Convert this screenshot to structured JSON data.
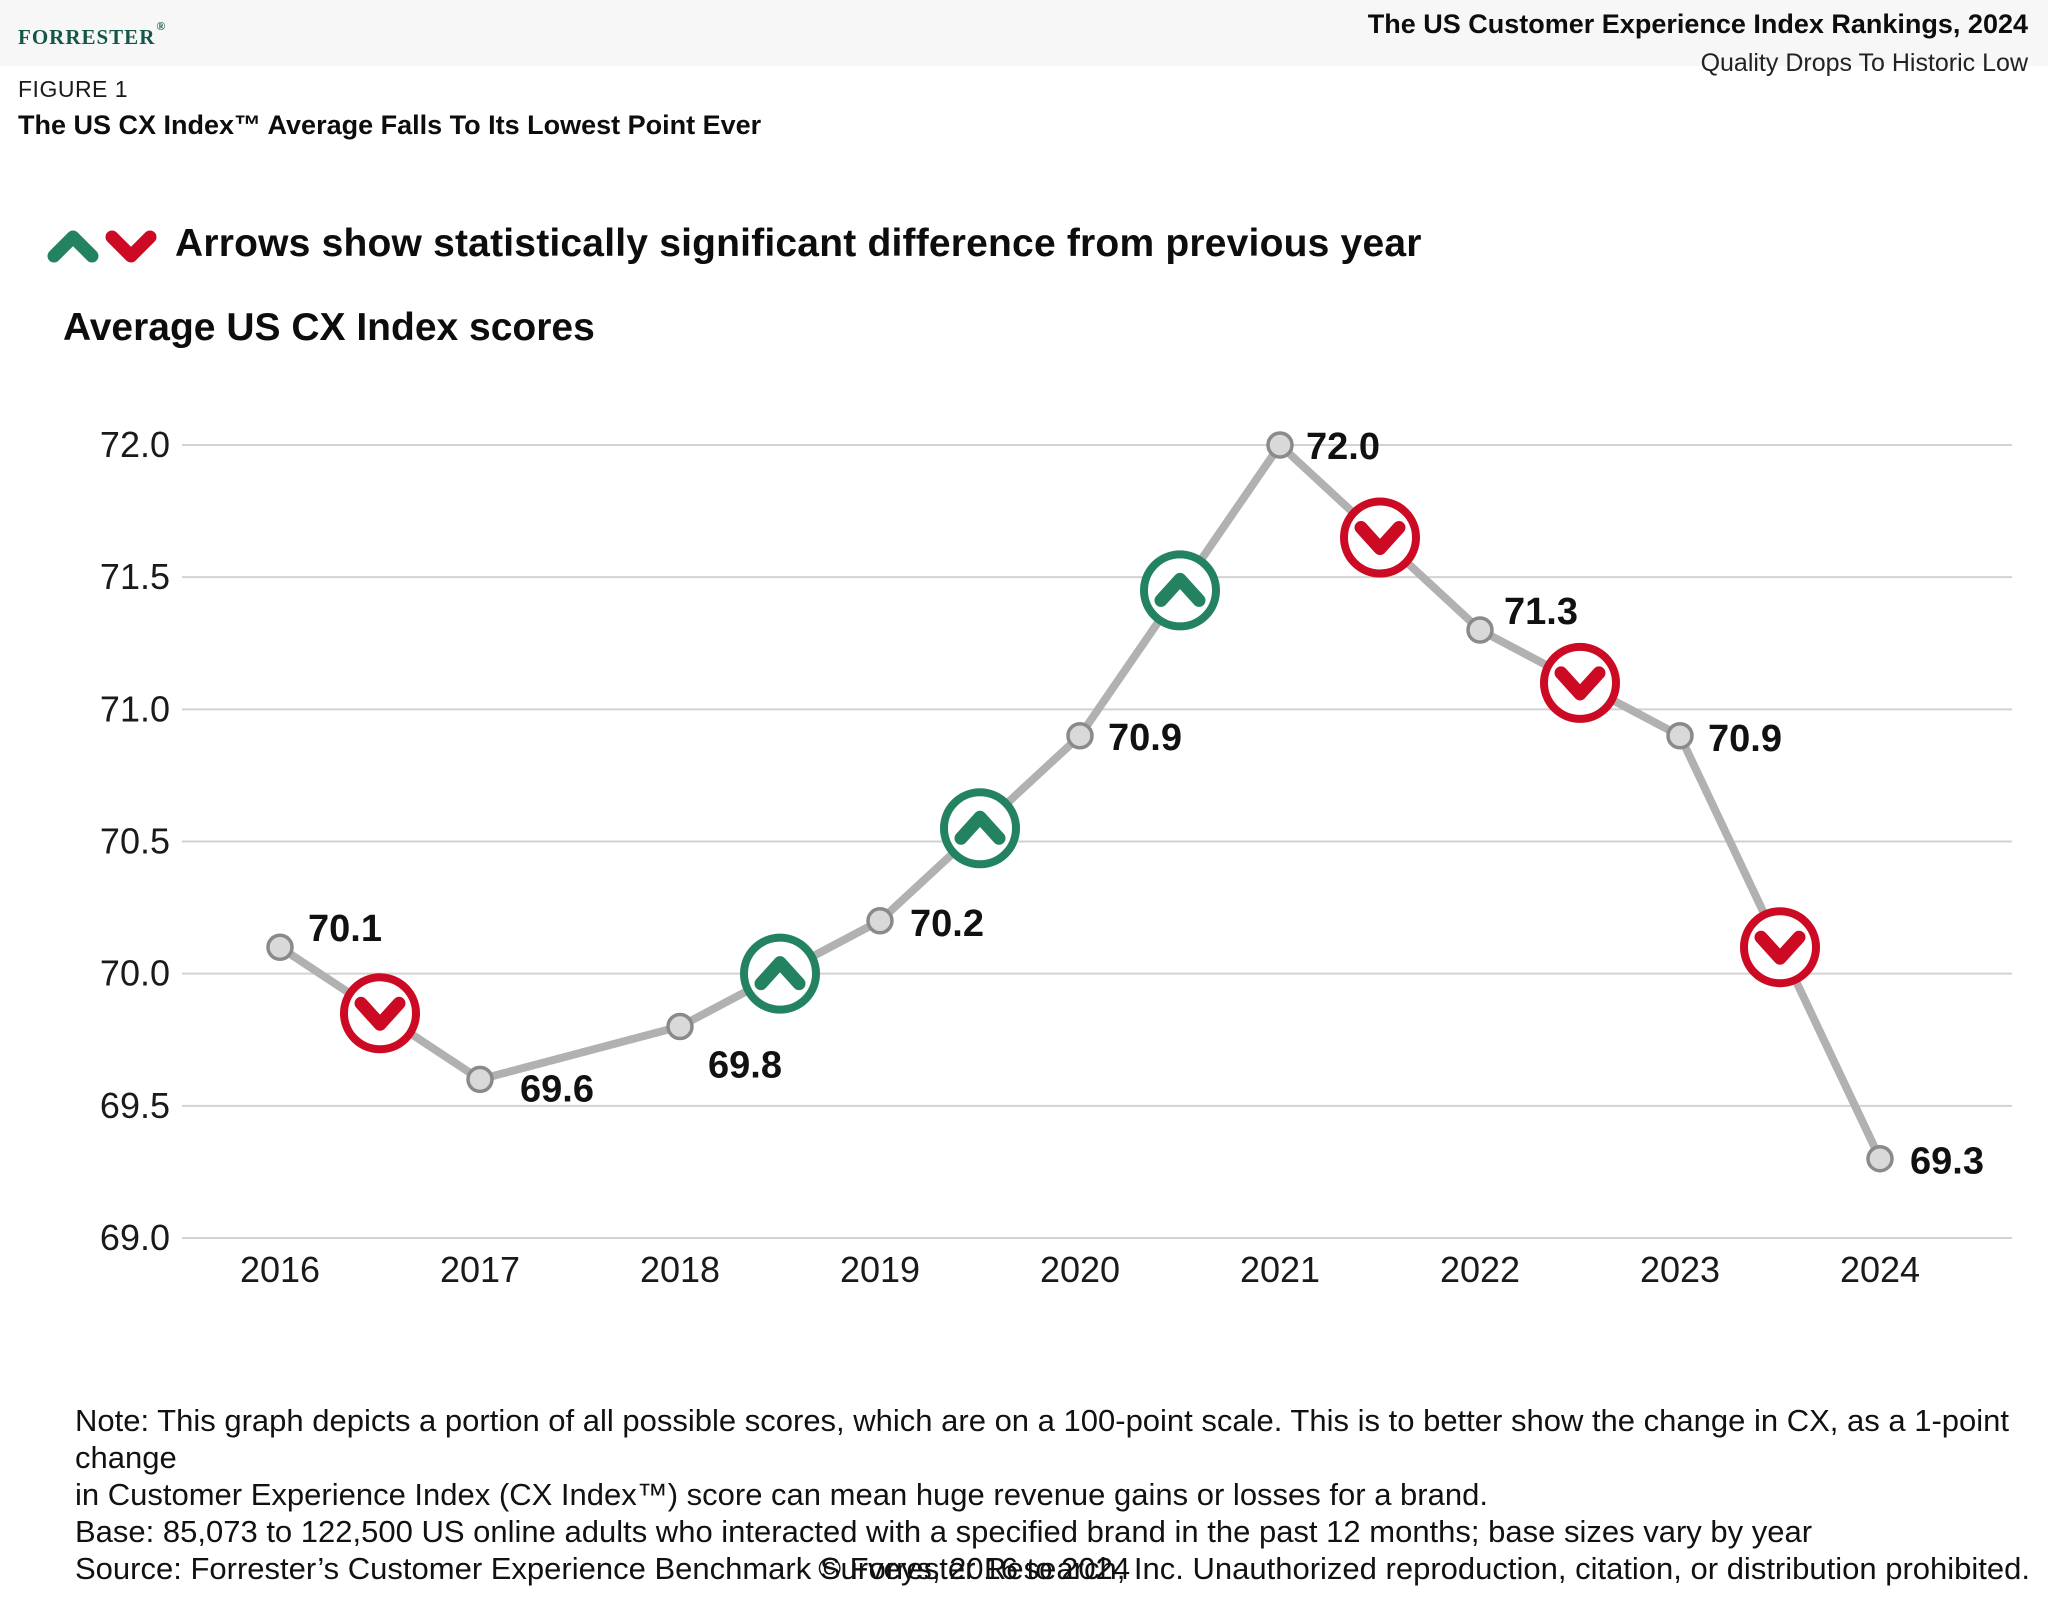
{
  "header": {
    "logo_text": "Forrester",
    "logo_registered": "®",
    "report_title": "The US Customer Experience Index Rankings, 2024",
    "report_subtitle": "Quality Drops To Historic Low"
  },
  "figure": {
    "label": "FIGURE 1",
    "title": "The US CX Index™ Average Falls To Its Lowest Point Ever"
  },
  "legend": {
    "up_icon": "chevron-up",
    "down_icon": "chevron-down",
    "text": "Arrows show statistically significant difference from previous year"
  },
  "chart_title": "Average US CX Index scores",
  "chart_data": {
    "type": "line",
    "title": "Average US CX Index scores",
    "x": [
      2016,
      2017,
      2018,
      2019,
      2020,
      2021,
      2022,
      2023,
      2024
    ],
    "values": [
      70.1,
      69.6,
      69.8,
      70.2,
      70.9,
      72.0,
      71.3,
      70.9,
      69.3
    ],
    "point_labels": [
      "70.1",
      "69.6",
      "69.8",
      "70.2",
      "70.9",
      "72.0",
      "71.3",
      "70.9",
      "69.3"
    ],
    "xlabel": "",
    "ylabel": "",
    "ylim": [
      69.0,
      72.0
    ],
    "yticks": [
      72.0,
      71.5,
      71.0,
      70.5,
      70.0,
      69.5,
      69.0
    ],
    "ytick_labels": [
      "72.0",
      "71.5",
      "71.0",
      "70.5",
      "70.0",
      "69.5",
      "69.0"
    ],
    "grid": "horizontal",
    "legend_position": "none",
    "significance_arrows": [
      {
        "from_year": 2016,
        "to_year": 2017,
        "direction": "down"
      },
      {
        "from_year": 2018,
        "to_year": 2019,
        "direction": "up"
      },
      {
        "from_year": 2019,
        "to_year": 2020,
        "direction": "up"
      },
      {
        "from_year": 2020,
        "to_year": 2021,
        "direction": "up"
      },
      {
        "from_year": 2021,
        "to_year": 2022,
        "direction": "down"
      },
      {
        "from_year": 2022,
        "to_year": 2023,
        "direction": "down"
      },
      {
        "from_year": 2023,
        "to_year": 2024,
        "direction": "down"
      }
    ]
  },
  "colors": {
    "up_arrow": "#23825f",
    "down_arrow": "#cd0a23",
    "line": "#b1b1b1",
    "marker_fill": "#d9d9d9",
    "marker_stroke": "#8a8a8a",
    "gridline": "#d2d2d2",
    "logo_green": "#14574a",
    "header_band": "#f7f7f7",
    "text": "#111111"
  },
  "notes": {
    "note_line1": "Note: This graph depicts a portion of all possible scores, which are on a 100-point scale. This is to better show the change in CX, as a 1-point change",
    "note_line2": "in Customer Experience Index (CX Index™) score can mean huge revenue gains or losses for a brand.",
    "base": "Base: 85,073 to 122,500 US online adults who interacted with a specified brand in the past 12 months; base sizes vary by year",
    "source": "Source: Forrester’s Customer Experience Benchmark Surveys, 2016 to 2024"
  },
  "footer": {
    "copyright": "© Forrester Research, Inc. Unauthorized reproduction, citation, or distribution prohibited."
  }
}
